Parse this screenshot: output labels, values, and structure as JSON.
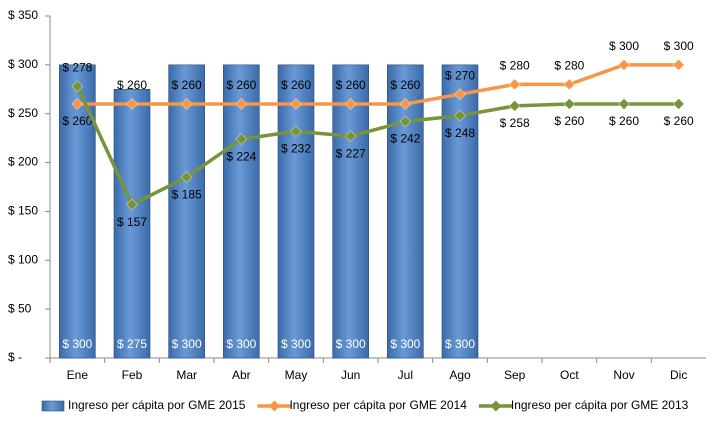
{
  "chart_data": {
    "type": "combo",
    "categories": [
      "Ene",
      "Feb",
      "Mar",
      "Abr",
      "May",
      "Jun",
      "Jul",
      "Ago",
      "Sep",
      "Oct",
      "Nov",
      "Dic"
    ],
    "series": [
      {
        "name": "Ingreso per cápita por GME 2015",
        "type": "bar",
        "color": "#4f81bd",
        "values": [
          300,
          275,
          300,
          300,
          300,
          300,
          300,
          300,
          null,
          null,
          null,
          null
        ],
        "value_labels": [
          "$ 300",
          "$ 275",
          "$ 300",
          "$ 300",
          "$ 300",
          "$ 300",
          "$ 300",
          "$ 300",
          null,
          null,
          null,
          null
        ]
      },
      {
        "name": "Ingreso per cápita por GME 2014",
        "type": "line",
        "color": "#f79646",
        "values": [
          260,
          260,
          260,
          260,
          260,
          260,
          260,
          270,
          280,
          280,
          300,
          300
        ],
        "value_labels": [
          "$ 260",
          "$ 260",
          "$ 260",
          "$ 260",
          "$ 260",
          "$ 260",
          "$ 260",
          "$ 270",
          "$ 280",
          "$ 280",
          "$ 300",
          "$ 300"
        ]
      },
      {
        "name": "Ingreso per cápita por GME 2013",
        "type": "line",
        "color": "#77933c",
        "values": [
          278,
          157,
          185,
          224,
          232,
          227,
          242,
          248,
          258,
          260,
          260,
          260
        ],
        "value_labels": [
          "$ 278",
          "$ 157",
          "$ 185",
          "$ 224",
          "$ 232",
          "$ 227",
          "$ 242",
          "$ 248",
          "$ 258",
          "$ 260",
          "$ 260",
          "$ 260"
        ]
      }
    ],
    "ylim": [
      0,
      350
    ],
    "yticks": [
      {
        "value": 0,
        "label": "$ -"
      },
      {
        "value": 50,
        "label": "$ 50"
      },
      {
        "value": 100,
        "label": "$ 100"
      },
      {
        "value": 150,
        "label": "$ 150"
      },
      {
        "value": 200,
        "label": "$ 200"
      },
      {
        "value": 250,
        "label": "$ 250"
      },
      {
        "value": 300,
        "label": "$ 300"
      },
      {
        "value": 350,
        "label": "$ 350"
      }
    ],
    "legend": "bottom"
  }
}
